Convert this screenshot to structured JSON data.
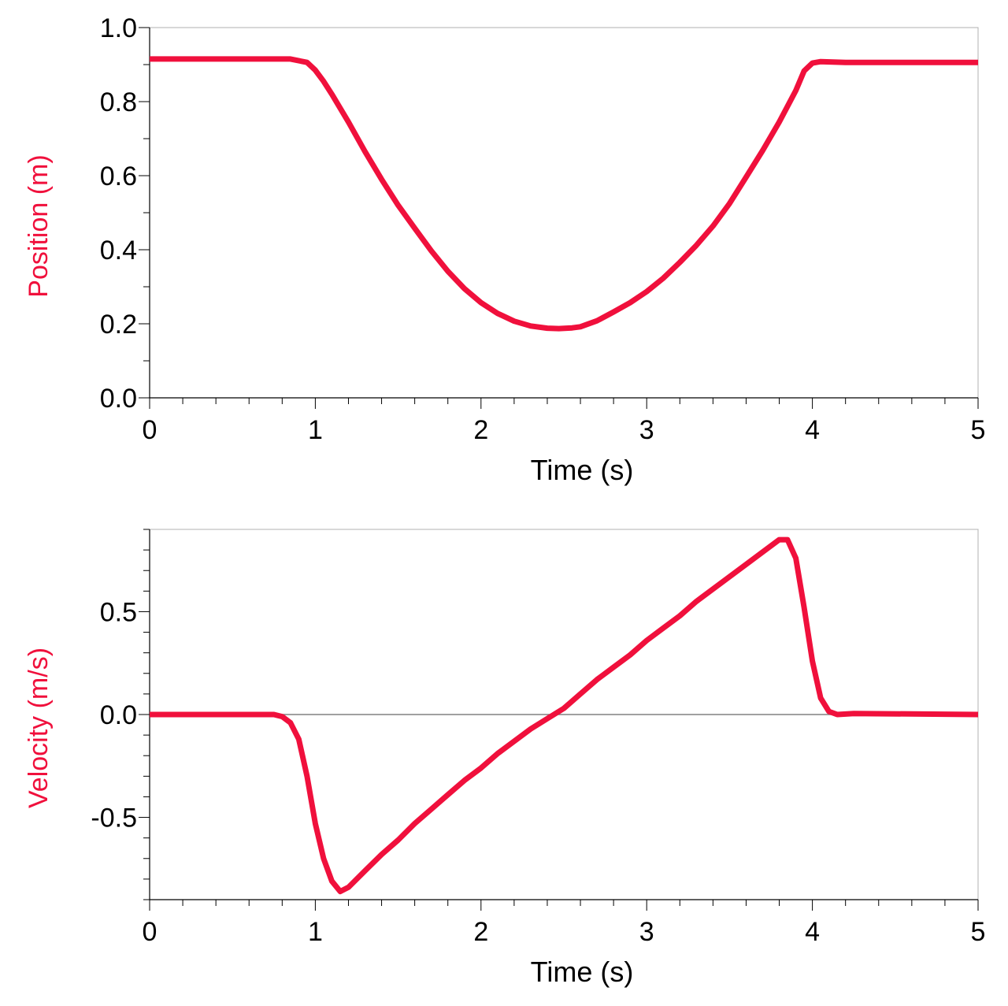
{
  "colors": {
    "series": "#f0103c",
    "frame": "#808080",
    "text": "#000000"
  },
  "chart_data": [
    {
      "type": "line",
      "title": "",
      "xlabel": "Time (s)",
      "ylabel": "Position (m)",
      "xlim": [
        0,
        5
      ],
      "ylim": [
        0,
        1.0
      ],
      "xticks": [
        "0",
        "1",
        "2",
        "3",
        "4",
        "5"
      ],
      "yticks": [
        "0.0",
        "0.2",
        "0.4",
        "0.6",
        "0.8",
        "1.0"
      ],
      "ytick_values": [
        0,
        0.2,
        0.4,
        0.6,
        0.8,
        1.0
      ],
      "x_minor_step": 0.2,
      "y_minor_step": 0.1,
      "zero_line": false,
      "series": [
        {
          "name": "Position",
          "x": [
            0,
            0.85,
            0.95,
            1.0,
            1.05,
            1.1,
            1.2,
            1.3,
            1.4,
            1.5,
            1.6,
            1.7,
            1.8,
            1.9,
            2.0,
            2.1,
            2.2,
            2.3,
            2.4,
            2.47,
            2.55,
            2.6,
            2.7,
            2.8,
            2.9,
            3.0,
            3.1,
            3.2,
            3.3,
            3.4,
            3.5,
            3.6,
            3.7,
            3.8,
            3.9,
            3.95,
            4.0,
            4.05,
            4.2,
            5.0
          ],
          "y": [
            0.915,
            0.915,
            0.906,
            0.885,
            0.855,
            0.82,
            0.745,
            0.665,
            0.59,
            0.52,
            0.458,
            0.397,
            0.342,
            0.295,
            0.257,
            0.228,
            0.207,
            0.194,
            0.188,
            0.187,
            0.189,
            0.192,
            0.208,
            0.232,
            0.257,
            0.287,
            0.323,
            0.366,
            0.412,
            0.464,
            0.525,
            0.596,
            0.668,
            0.745,
            0.83,
            0.883,
            0.904,
            0.908,
            0.906,
            0.906
          ]
        }
      ]
    },
    {
      "type": "line",
      "title": "",
      "xlabel": "Time (s)",
      "ylabel": "Velocity (m/s)",
      "xlim": [
        0,
        5
      ],
      "ylim": [
        -0.9,
        0.9
      ],
      "xticks": [
        "0",
        "1",
        "2",
        "3",
        "4",
        "5"
      ],
      "yticks": [
        "-0.5",
        "0.0",
        "0.5"
      ],
      "ytick_values": [
        -0.5,
        0,
        0.5
      ],
      "x_minor_step": 0.2,
      "y_minor_step": 0.1,
      "zero_line": true,
      "series": [
        {
          "name": "Velocity",
          "x": [
            0,
            0.75,
            0.8,
            0.85,
            0.9,
            0.95,
            1.0,
            1.05,
            1.1,
            1.15,
            1.2,
            1.3,
            1.4,
            1.5,
            1.6,
            1.7,
            1.8,
            1.9,
            2.0,
            2.1,
            2.2,
            2.3,
            2.4,
            2.5,
            2.6,
            2.7,
            2.8,
            2.9,
            3.0,
            3.1,
            3.2,
            3.3,
            3.4,
            3.5,
            3.6,
            3.7,
            3.8,
            3.85,
            3.9,
            3.95,
            4.0,
            4.05,
            4.1,
            4.15,
            4.25,
            5.0
          ],
          "y": [
            0,
            0,
            -0.01,
            -0.04,
            -0.12,
            -0.3,
            -0.53,
            -0.7,
            -0.81,
            -0.86,
            -0.84,
            -0.76,
            -0.68,
            -0.61,
            -0.53,
            -0.46,
            -0.39,
            -0.32,
            -0.26,
            -0.19,
            -0.13,
            -0.07,
            -0.02,
            0.03,
            0.1,
            0.17,
            0.23,
            0.29,
            0.36,
            0.42,
            0.48,
            0.55,
            0.61,
            0.67,
            0.73,
            0.79,
            0.85,
            0.85,
            0.76,
            0.52,
            0.26,
            0.08,
            0.015,
            0,
            0.005,
            0
          ]
        }
      ]
    }
  ]
}
